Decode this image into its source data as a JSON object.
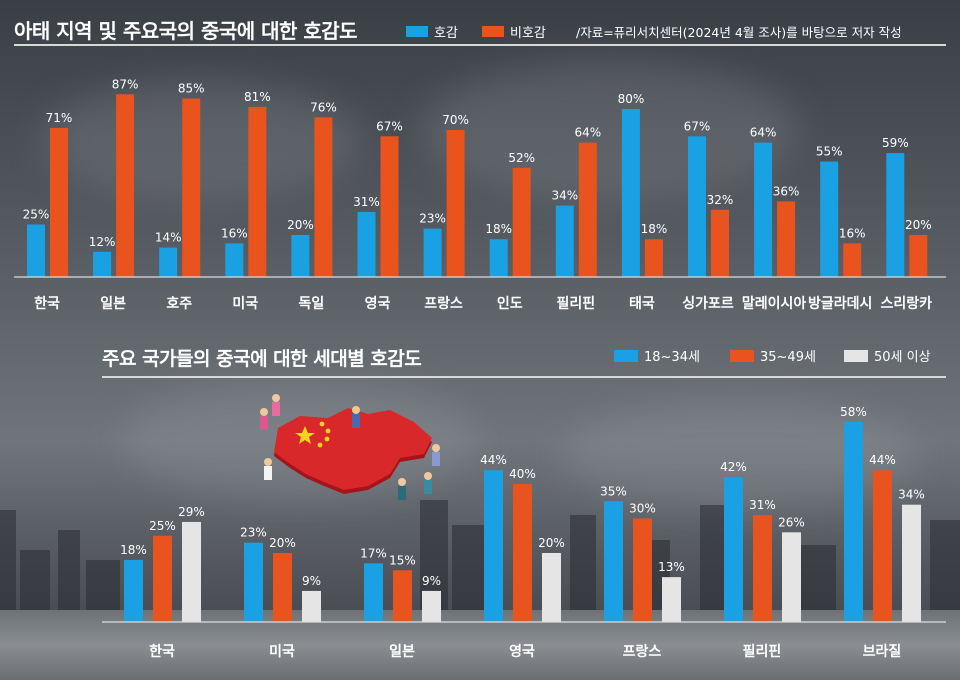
{
  "top": {
    "title": "아태 지역 및 주요국의 중국에 대한 호감도",
    "source": "/자료=퓨리서치센터(2024년 4월 조사)를 바탕으로 저자 작성"
  },
  "bottom": {
    "title": "주요 국가들의 중국에 대한 세대별 호감도"
  },
  "colors": {
    "blue": "#1aa1e4",
    "orange": "#e8531e",
    "white": "#e5e5e5"
  },
  "chart_data": [
    {
      "type": "bar",
      "title": "아태 지역 및 주요국의 중국에 대한 호감도",
      "categories": [
        "한국",
        "일본",
        "호주",
        "미국",
        "독일",
        "영국",
        "프랑스",
        "인도",
        "필리핀",
        "태국",
        "싱가포르",
        "말레이시아",
        "방글라데시",
        "스리랑카"
      ],
      "series": [
        {
          "name": "호감",
          "values": [
            25,
            12,
            14,
            16,
            20,
            31,
            23,
            18,
            34,
            80,
            67,
            64,
            55,
            59
          ],
          "color": "#1aa1e4"
        },
        {
          "name": "비호감",
          "values": [
            71,
            87,
            85,
            81,
            76,
            67,
            70,
            52,
            64,
            18,
            32,
            36,
            16,
            20
          ],
          "color": "#e8531e"
        }
      ],
      "unit": "%",
      "legend_position": "top",
      "ylim": [
        0,
        100
      ]
    },
    {
      "type": "bar",
      "title": "주요 국가들의 중국에 대한 세대별 호감도",
      "categories": [
        "한국",
        "미국",
        "일본",
        "영국",
        "프랑스",
        "필리핀",
        "브라질"
      ],
      "series": [
        {
          "name": "18~34세",
          "values": [
            18,
            23,
            17,
            44,
            35,
            42,
            58
          ],
          "color": "#1aa1e4"
        },
        {
          "name": "35~49세",
          "values": [
            25,
            20,
            15,
            40,
            30,
            31,
            44
          ],
          "color": "#e8531e"
        },
        {
          "name": "50세 이상",
          "values": [
            29,
            9,
            9,
            20,
            13,
            26,
            34
          ],
          "color": "#e5e5e5"
        }
      ],
      "unit": "%",
      "legend_position": "top-right",
      "ylim": [
        0,
        60
      ]
    }
  ]
}
